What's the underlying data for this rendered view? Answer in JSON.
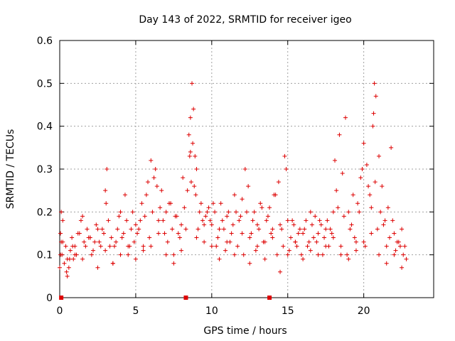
{
  "chart_data": {
    "type": "scatter",
    "title": "Day 143 of 2022, SRMTID for receiver igeo",
    "xlabel": "GPS time / hours",
    "ylabel": "SRMTID / TECUs",
    "xlim": [
      0,
      24.6
    ],
    "ylim": [
      0,
      0.6
    ],
    "x_ticks": [
      0,
      5,
      10,
      15,
      20
    ],
    "x_tick_labels": [
      "0",
      "5",
      "10",
      "15",
      "20"
    ],
    "y_ticks": [
      0,
      0.1,
      0.2,
      0.3,
      0.4,
      0.5,
      0.6
    ],
    "y_tick_labels": [
      "0",
      "0.1",
      "0.2",
      "0.3",
      "0.4",
      "0.5",
      "0.6"
    ],
    "grid": true,
    "marker": "plus",
    "series_color": "#dd0000",
    "x_range_of_data": [
      0,
      22.8
    ],
    "series": [
      {
        "name": "SRMTID",
        "x": [
          0.0,
          0.05,
          0.1,
          0.15,
          0.2,
          0.3,
          0.4,
          0.5,
          0.6,
          0.7,
          0.8,
          0.9,
          1.0,
          1.2,
          1.4,
          1.6,
          1.8,
          2.0,
          2.2,
          2.4,
          2.6,
          2.8,
          3.0,
          3.1,
          3.2,
          3.4,
          3.6,
          3.8,
          4.0,
          4.2,
          4.4,
          4.6,
          4.8,
          5.0,
          5.2,
          5.4,
          5.6,
          5.8,
          6.0,
          6.2,
          6.4,
          6.6,
          6.8,
          7.0,
          7.2,
          7.4,
          7.6,
          7.8,
          8.0,
          8.2,
          8.4,
          8.5,
          8.6,
          8.7,
          8.8,
          8.9,
          9.0,
          9.2,
          9.4,
          9.6,
          9.8,
          10.0,
          10.2,
          10.4,
          10.6,
          10.8,
          11.0,
          11.2,
          11.4,
          11.6,
          11.8,
          12.0,
          12.2,
          12.4,
          12.6,
          12.8,
          13.0,
          13.2,
          13.4,
          13.6,
          13.8,
          14.0,
          14.2,
          14.4,
          14.6,
          14.8,
          15.0,
          15.2,
          15.4,
          15.6,
          15.8,
          16.0,
          16.2,
          16.4,
          16.6,
          16.8,
          17.0,
          17.2,
          17.4,
          17.6,
          17.8,
          18.0,
          18.2,
          18.4,
          18.6,
          18.8,
          19.0,
          19.2,
          19.4,
          19.6,
          19.8,
          20.0,
          20.2,
          20.4,
          20.6,
          20.7,
          20.8,
          21.0,
          21.2,
          21.4,
          21.6,
          21.8,
          22.0,
          22.2,
          22.4,
          22.6,
          22.8,
          0.05,
          0.2,
          0.45,
          0.65,
          0.85,
          1.1,
          1.3,
          1.5,
          1.7,
          1.9,
          2.1,
          2.3,
          2.5,
          2.7,
          2.9,
          3.05,
          3.3,
          3.5,
          3.7,
          3.9,
          4.1,
          4.3,
          4.5,
          4.7,
          4.9,
          5.1,
          5.3,
          5.5,
          5.7,
          5.9,
          6.1,
          6.3,
          6.5,
          6.7,
          6.9,
          7.1,
          7.3,
          7.5,
          7.7,
          7.9,
          8.1,
          8.3,
          8.55,
          8.65,
          8.75,
          8.85,
          8.95,
          9.1,
          9.3,
          9.5,
          9.7,
          9.9,
          10.1,
          10.3,
          10.5,
          10.7,
          10.9,
          11.1,
          11.3,
          11.5,
          11.7,
          11.9,
          12.1,
          12.3,
          12.5,
          12.7,
          12.9,
          13.1,
          13.3,
          13.5,
          13.7,
          13.9,
          14.1,
          14.3,
          14.5,
          14.7,
          14.9,
          15.1,
          15.3,
          15.5,
          15.7,
          15.9,
          16.1,
          16.3,
          16.5,
          16.7,
          16.9,
          17.1,
          17.3,
          17.5,
          17.7,
          17.9,
          18.1,
          18.3,
          18.5,
          18.7,
          18.9,
          19.1,
          19.3,
          19.5,
          19.7,
          19.9,
          20.1,
          20.3,
          20.5,
          20.65,
          20.75,
          20.9,
          21.1,
          21.3,
          21.5,
          21.7,
          21.9,
          22.1,
          22.3,
          22.5,
          22.7,
          0.1,
          0.5,
          1.0,
          1.5,
          2.0,
          2.5,
          3.0,
          3.5,
          4.0,
          4.5,
          5.0,
          5.5,
          6.0,
          6.5,
          7.0,
          7.5,
          8.0,
          8.6,
          9.0,
          9.5,
          10.0,
          10.5,
          11.0,
          11.5,
          12.0,
          12.5,
          13.0,
          13.5,
          14.0,
          14.5,
          15.0,
          15.5,
          16.0,
          16.5,
          17.0,
          17.5,
          18.0,
          18.5,
          19.0,
          19.5,
          20.0,
          20.5,
          21.0,
          21.5,
          22.0,
          22.5
        ],
        "y": [
          0.07,
          0.15,
          0.2,
          0.1,
          0.13,
          0.08,
          0.12,
          0.09,
          0.07,
          0.11,
          0.14,
          0.09,
          0.12,
          0.15,
          0.18,
          0.13,
          0.16,
          0.14,
          0.11,
          0.17,
          0.13,
          0.16,
          0.25,
          0.3,
          0.18,
          0.14,
          0.12,
          0.16,
          0.2,
          0.15,
          0.18,
          0.12,
          0.2,
          0.17,
          0.16,
          0.22,
          0.19,
          0.27,
          0.32,
          0.28,
          0.26,
          0.21,
          0.18,
          0.2,
          0.22,
          0.16,
          0.19,
          0.15,
          0.17,
          0.21,
          0.25,
          0.38,
          0.42,
          0.5,
          0.44,
          0.33,
          0.3,
          0.2,
          0.18,
          0.19,
          0.21,
          0.17,
          0.2,
          0.14,
          0.22,
          0.16,
          0.19,
          0.13,
          0.17,
          0.2,
          0.18,
          0.23,
          0.3,
          0.26,
          0.15,
          0.2,
          0.17,
          0.22,
          0.13,
          0.18,
          0.21,
          0.16,
          0.24,
          0.27,
          0.16,
          0.33,
          0.18,
          0.14,
          0.17,
          0.12,
          0.16,
          0.15,
          0.18,
          0.13,
          0.17,
          0.19,
          0.15,
          0.17,
          0.14,
          0.18,
          0.16,
          0.2,
          0.25,
          0.38,
          0.29,
          0.42,
          0.2,
          0.17,
          0.14,
          0.22,
          0.28,
          0.36,
          0.31,
          0.24,
          0.4,
          0.5,
          0.47,
          0.33,
          0.26,
          0.18,
          0.21,
          0.35,
          0.15,
          0.13,
          0.12,
          0.1,
          0.09,
          0.1,
          0.18,
          0.06,
          0.09,
          0.12,
          0.1,
          0.15,
          0.19,
          0.12,
          0.14,
          0.1,
          0.13,
          0.16,
          0.12,
          0.15,
          0.22,
          0.12,
          0.08,
          0.13,
          0.19,
          0.14,
          0.24,
          0.1,
          0.16,
          0.13,
          0.15,
          0.18,
          0.12,
          0.24,
          0.14,
          0.2,
          0.3,
          0.18,
          0.25,
          0.15,
          0.13,
          0.22,
          0.1,
          0.19,
          0.14,
          0.28,
          0.16,
          0.33,
          0.27,
          0.36,
          0.26,
          0.24,
          0.16,
          0.22,
          0.13,
          0.2,
          0.18,
          0.22,
          0.12,
          0.16,
          0.18,
          0.11,
          0.2,
          0.15,
          0.24,
          0.12,
          0.19,
          0.1,
          0.2,
          0.14,
          0.18,
          0.11,
          0.16,
          0.21,
          0.13,
          0.19,
          0.15,
          0.24,
          0.1,
          0.17,
          0.12,
          0.3,
          0.11,
          0.18,
          0.13,
          0.15,
          0.1,
          0.16,
          0.12,
          0.2,
          0.14,
          0.13,
          0.18,
          0.1,
          0.16,
          0.12,
          0.15,
          0.32,
          0.21,
          0.12,
          0.19,
          0.1,
          0.16,
          0.24,
          0.13,
          0.2,
          0.3,
          0.12,
          0.26,
          0.21,
          0.43,
          0.27,
          0.16,
          0.2,
          0.17,
          0.12,
          0.14,
          0.18,
          0.11,
          0.13,
          0.16,
          0.12,
          0.13,
          0.05,
          0.1,
          0.09,
          0.14,
          0.07,
          0.11,
          0.08,
          0.1,
          0.12,
          0.09,
          0.11,
          0.12,
          0.15,
          0.1,
          0.08,
          0.11,
          0.34,
          0.14,
          0.17,
          0.12,
          0.09,
          0.13,
          0.1,
          0.15,
          0.08,
          0.12,
          0.09,
          0.14,
          0.06,
          0.1,
          0.13,
          0.09,
          0.11,
          0.1,
          0.12,
          0.14,
          0.1,
          0.09,
          0.11,
          0.13,
          0.15,
          0.1,
          0.08,
          0.1,
          0.07
        ]
      }
    ],
    "axis_markers": [
      {
        "x": 8.3,
        "y": 0
      },
      {
        "x": 13.8,
        "y": 0
      },
      {
        "x": 0.1,
        "y": 0
      }
    ]
  }
}
